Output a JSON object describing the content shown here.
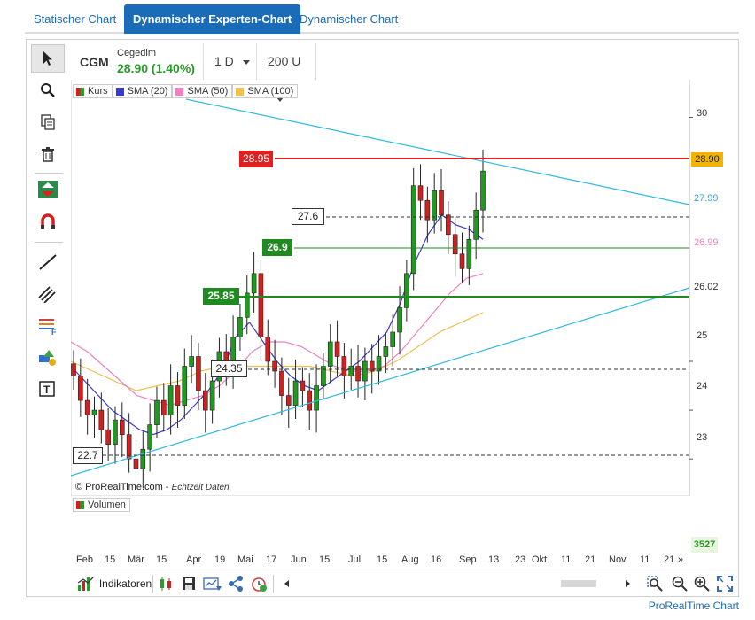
{
  "tabs": [
    {
      "label": "Statischer Chart",
      "active": false
    },
    {
      "label": "Dynamischer Experten-Chart",
      "active": true
    },
    {
      "label": "Dynamischer Chart",
      "active": false
    }
  ],
  "header": {
    "symbol": "CGM",
    "name": "Cegedim",
    "price": "28.90 (1.40%)",
    "interval": "1 D",
    "units": "200 U"
  },
  "legend": [
    {
      "label": "Kurs",
      "color": "#2a9a2a"
    },
    {
      "label": "SMA (20)",
      "color": "#3a3ac8"
    },
    {
      "label": "SMA (50)",
      "color": "#ee82c0"
    },
    {
      "label": "SMA (100)",
      "color": "#f0c050"
    }
  ],
  "y_axis": {
    "ticks": [
      "30",
      "25",
      "24",
      "23"
    ],
    "current_price": "28.90",
    "line_value_1": "27.99",
    "line_value_2": "26.99",
    "line_value_3": "26.02"
  },
  "levels": [
    {
      "label": "28.95",
      "style": "red"
    },
    {
      "label": "27.6",
      "style": "dashed"
    },
    {
      "label": "26.9",
      "style": "green"
    },
    {
      "label": "25.85",
      "style": "green"
    },
    {
      "label": "24.35",
      "style": "dashed"
    },
    {
      "label": "22.7",
      "style": "dashed"
    }
  ],
  "credit": "© ProRealTime.com",
  "credit_note": "Echtzeit Daten",
  "volume": {
    "label": "Volumen",
    "value": "3527"
  },
  "x_axis": [
    "Feb",
    "15",
    "Mär",
    "15",
    "Apr",
    "19",
    "Mai",
    "17",
    "Jun",
    "15",
    "Jul",
    "15",
    "Aug",
    "16",
    "Sep",
    "13",
    "23",
    "Okt",
    "11",
    "21",
    "Nov",
    "11",
    "21"
  ],
  "bottom": {
    "indicators_label": "Indikatoren"
  },
  "footer": "ProRealTime Chart",
  "chart_data": {
    "type": "candlestick",
    "title": "",
    "xlabel": "",
    "ylabel": "",
    "ylim": [
      22.35,
      30.3
    ],
    "series": [
      {
        "name": "Kurs",
        "values": [
          24.7,
          24.2,
          23.9,
          24.0,
          23.6,
          23.3,
          23.8,
          23.5,
          23.0,
          22.8,
          23.2,
          23.7,
          24.2,
          23.9,
          24.5,
          24.1,
          24.9,
          25.1,
          24.4,
          24.0,
          24.6,
          25.2,
          24.9,
          25.5,
          25.9,
          26.4,
          26.8,
          25.5,
          25.0,
          24.8,
          24.3,
          24.1,
          24.6,
          24.4,
          24.0,
          24.5,
          24.9,
          25.4,
          25.1,
          24.7,
          24.9,
          24.6,
          25.0,
          24.8,
          25.1,
          25.3,
          25.6,
          26.1,
          26.8,
          28.6,
          28.3,
          27.9,
          28.5,
          28.0,
          27.6,
          27.2,
          26.9,
          27.5,
          28.1,
          28.9
        ]
      },
      {
        "name": "SMA (20)",
        "values": [
          24.9,
          24.6,
          24.3,
          24.0,
          23.8,
          23.6,
          23.5,
          23.6,
          23.8,
          24.1,
          24.4,
          24.8,
          25.5,
          25.8,
          25.4,
          25.0,
          24.7,
          24.5,
          24.4,
          24.6,
          24.8,
          25.0,
          25.3,
          25.6,
          26.2,
          27.0,
          27.6,
          28.0,
          27.8,
          27.7,
          27.5
        ]
      },
      {
        "name": "SMA (50)",
        "values": [
          25.4,
          25.2,
          24.9,
          24.6,
          24.3,
          24.2,
          24.1,
          24.2,
          24.3,
          24.5,
          24.8,
          25.2,
          25.4,
          25.4,
          25.3,
          25.1,
          24.9,
          24.8,
          24.8,
          24.9,
          25.2,
          25.6,
          26.0,
          26.4,
          26.7,
          26.8
        ]
      },
      {
        "name": "SMA (100)",
        "values": [
          25.0,
          24.8,
          24.6,
          24.4,
          24.5,
          24.6,
          24.8,
          24.9,
          24.9,
          24.9,
          24.9,
          24.9,
          24.8,
          24.7,
          24.8,
          25.0,
          25.3,
          25.6,
          25.8,
          26.0
        ]
      }
    ]
  }
}
